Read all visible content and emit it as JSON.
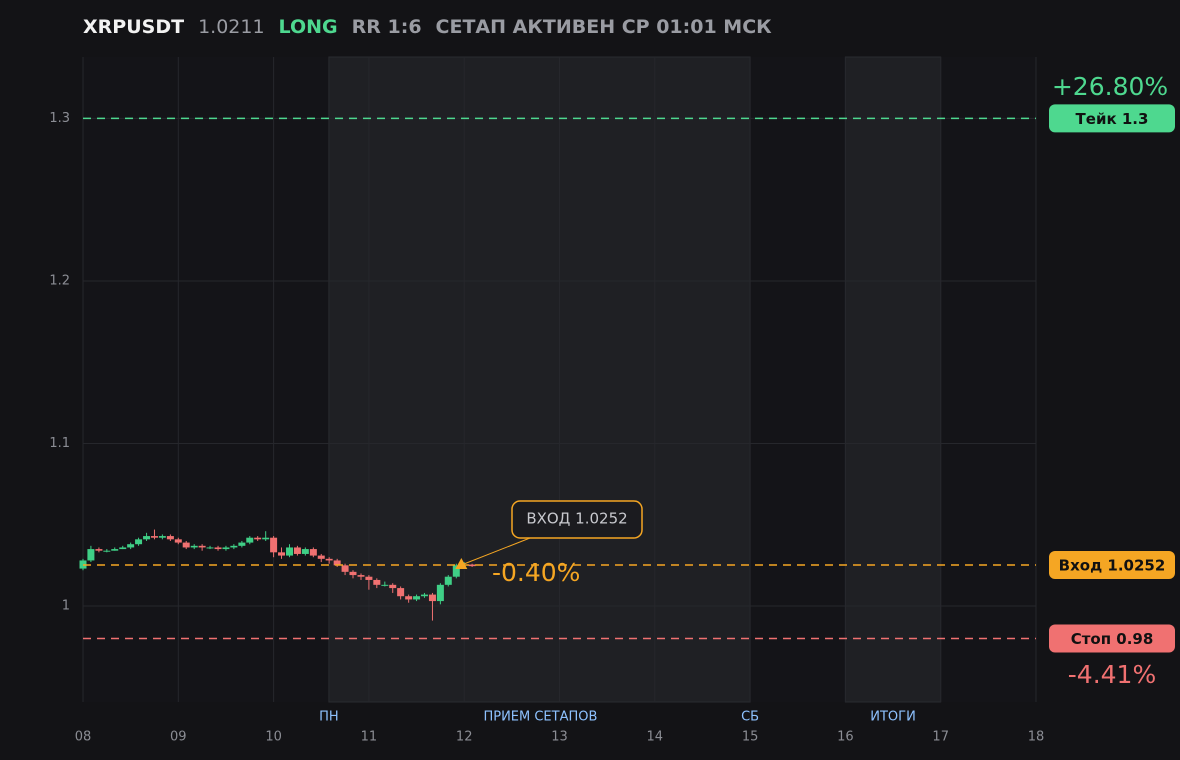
{
  "header": {
    "symbol": "XRPUSDT",
    "price": "1.0211",
    "side": "LONG",
    "rr": "RR 1:6",
    "status": "СЕТАП АКТИВЕН СР 01:01 МСК"
  },
  "chart_data": {
    "type": "candlestick",
    "x": [
      8.0,
      8.083,
      8.167,
      8.25,
      8.333,
      8.417,
      8.5,
      8.583,
      8.667,
      8.75,
      8.833,
      8.917,
      9.0,
      9.083,
      9.167,
      9.25,
      9.333,
      9.417,
      9.5,
      9.583,
      9.667,
      9.75,
      9.833,
      9.917,
      10.0,
      10.083,
      10.167,
      10.25,
      10.333,
      10.417,
      10.5,
      10.583,
      10.667,
      10.75,
      10.833,
      10.917,
      11.0,
      11.083,
      11.167,
      11.25,
      11.333,
      11.417,
      11.5,
      11.583,
      11.667,
      11.75,
      11.833,
      11.917,
      12.0,
      12.083
    ],
    "open": [
      1.023,
      1.028,
      1.035,
      1.034,
      1.034,
      1.035,
      1.036,
      1.038,
      1.041,
      1.043,
      1.042,
      1.043,
      1.041,
      1.039,
      1.036,
      1.037,
      1.036,
      1.036,
      1.035,
      1.036,
      1.037,
      1.039,
      1.042,
      1.041,
      1.042,
      1.033,
      1.031,
      1.036,
      1.032,
      1.035,
      1.031,
      1.029,
      1.028,
      1.025,
      1.021,
      1.019,
      1.018,
      1.016,
      1.013,
      1.013,
      1.011,
      1.006,
      1.004,
      1.006,
      1.007,
      1.003,
      1.013,
      1.018,
      1.025,
      1.0255
    ],
    "high": [
      1.029,
      1.037,
      1.036,
      1.035,
      1.036,
      1.037,
      1.039,
      1.042,
      1.045,
      1.047,
      1.044,
      1.044,
      1.042,
      1.04,
      1.038,
      1.038,
      1.037,
      1.037,
      1.037,
      1.038,
      1.04,
      1.043,
      1.043,
      1.046,
      1.043,
      1.036,
      1.038,
      1.037,
      1.036,
      1.036,
      1.032,
      1.03,
      1.029,
      1.026,
      1.022,
      1.02,
      1.019,
      1.017,
      1.015,
      1.014,
      1.012,
      1.007,
      1.007,
      1.008,
      1.008,
      1.014,
      1.019,
      1.026,
      1.027,
      1.026
    ],
    "low": [
      1.022,
      1.027,
      1.033,
      1.033,
      1.034,
      1.035,
      1.035,
      1.037,
      1.04,
      1.041,
      1.041,
      1.04,
      1.038,
      1.035,
      1.035,
      1.034,
      1.035,
      1.034,
      1.034,
      1.035,
      1.036,
      1.038,
      1.04,
      1.04,
      1.03,
      1.029,
      1.03,
      1.031,
      1.031,
      1.03,
      1.027,
      1.026,
      1.024,
      1.019,
      1.017,
      1.016,
      1.01,
      1.011,
      1.012,
      1.008,
      1.004,
      1.002,
      1.003,
      1.005,
      0.991,
      1.001,
      1.012,
      1.017,
      1.024,
      1.024
    ],
    "close": [
      1.028,
      1.035,
      1.034,
      1.034,
      1.035,
      1.036,
      1.038,
      1.041,
      1.043,
      1.042,
      1.043,
      1.041,
      1.039,
      1.036,
      1.037,
      1.036,
      1.036,
      1.035,
      1.036,
      1.037,
      1.039,
      1.042,
      1.041,
      1.042,
      1.033,
      1.031,
      1.036,
      1.032,
      1.035,
      1.031,
      1.029,
      1.028,
      1.025,
      1.021,
      1.019,
      1.018,
      1.016,
      1.013,
      1.013,
      1.011,
      1.006,
      1.004,
      1.006,
      1.007,
      1.003,
      1.013,
      1.018,
      1.025,
      1.0255,
      1.0245
    ],
    "up_color": "#3fcf86",
    "down_color": "#f07171",
    "xlim": [
      8,
      18
    ],
    "xticks": [
      {
        "value": 8,
        "label": "08"
      },
      {
        "value": 9,
        "label": "09"
      },
      10,
      11,
      12,
      13,
      14,
      15,
      16,
      17,
      18
    ],
    "ylim": [
      0.9409,
      1.3378
    ],
    "yticks": [
      1,
      1.1,
      1.2,
      1.3
    ],
    "grid": true,
    "zones": [
      [
        10.58,
        15
      ],
      [
        16,
        17
      ]
    ],
    "events": [
      {
        "x": 10.58,
        "label": "ПН"
      },
      {
        "x": 12.8,
        "label": "ПРИЕМ СЕТАПОВ"
      },
      {
        "x": 15,
        "label": "СБ"
      },
      {
        "x": 16.5,
        "label": "ИТОГИ"
      }
    ],
    "levels": [
      {
        "value": 1.3,
        "label": "Тейк 1.3",
        "pct": "+26.80%",
        "color": "#4ed88f"
      },
      {
        "value": 1.0252,
        "label": "Вход 1.0252",
        "pct": "-0.40%",
        "color": "#f5a623"
      },
      {
        "value": 0.98,
        "label": "Стоп 0.98",
        "pct": "-4.41%",
        "color": "#f07171"
      }
    ],
    "entry": {
      "x": 11.97,
      "y": 1.0252,
      "label": "ВХОД 1.0252",
      "color": "#f5a623"
    }
  }
}
